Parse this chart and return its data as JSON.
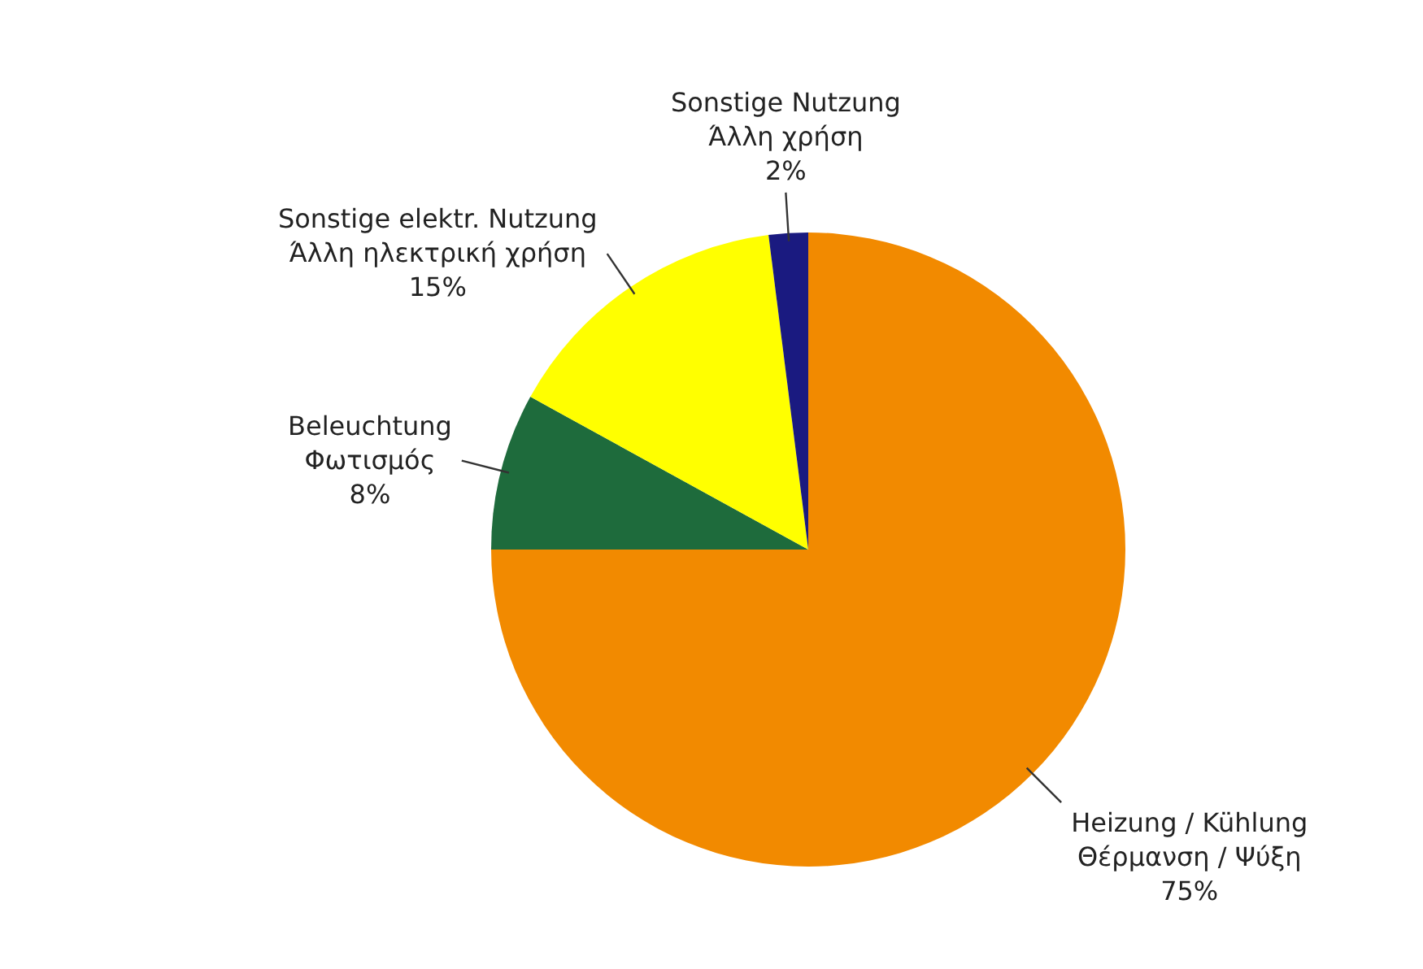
{
  "chart_data": {
    "type": "pie",
    "categories": [
      "Heizung / Kühlung\nΘέρμανση / Ψύξη",
      "Beleuchtung\nΦωτισμός",
      "Sonstige elektr. Nutzung\nΆλλη ηλεκτρική χρήση",
      "Sonstige Nutzung\nΆλλη χρήση"
    ],
    "values": [
      75,
      8,
      15,
      2
    ],
    "colors": [
      "#f28a00",
      "#1e6b3c",
      "#ffff00",
      "#1a1a80"
    ],
    "value_labels": [
      "75%",
      "8%",
      "15%",
      "2%"
    ]
  }
}
